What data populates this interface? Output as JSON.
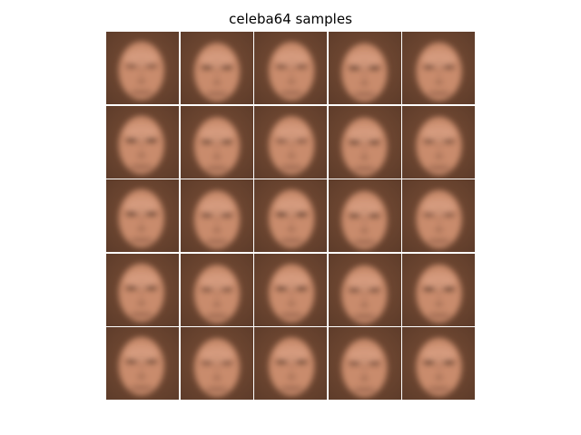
{
  "figure": {
    "title": "celeba64 samples"
  },
  "grid": {
    "rows": 5,
    "cols": 5,
    "tile_content": "blurry-face-sample",
    "colors": {
      "background": "#7a4f37",
      "background_dark": "#5e3c2a",
      "skin": "#c98b6c",
      "skin_light": "#d9a184",
      "feature": "#4a2c20",
      "separator": "#ffffff"
    },
    "samples": [
      {
        "row": 0,
        "col": 0
      },
      {
        "row": 0,
        "col": 1
      },
      {
        "row": 0,
        "col": 2
      },
      {
        "row": 0,
        "col": 3
      },
      {
        "row": 0,
        "col": 4
      },
      {
        "row": 1,
        "col": 0
      },
      {
        "row": 1,
        "col": 1
      },
      {
        "row": 1,
        "col": 2
      },
      {
        "row": 1,
        "col": 3
      },
      {
        "row": 1,
        "col": 4
      },
      {
        "row": 2,
        "col": 0
      },
      {
        "row": 2,
        "col": 1
      },
      {
        "row": 2,
        "col": 2
      },
      {
        "row": 2,
        "col": 3
      },
      {
        "row": 2,
        "col": 4
      },
      {
        "row": 3,
        "col": 0
      },
      {
        "row": 3,
        "col": 1
      },
      {
        "row": 3,
        "col": 2
      },
      {
        "row": 3,
        "col": 3
      },
      {
        "row": 3,
        "col": 4
      },
      {
        "row": 4,
        "col": 0
      },
      {
        "row": 4,
        "col": 1
      },
      {
        "row": 4,
        "col": 2
      },
      {
        "row": 4,
        "col": 3
      },
      {
        "row": 4,
        "col": 4
      }
    ]
  }
}
